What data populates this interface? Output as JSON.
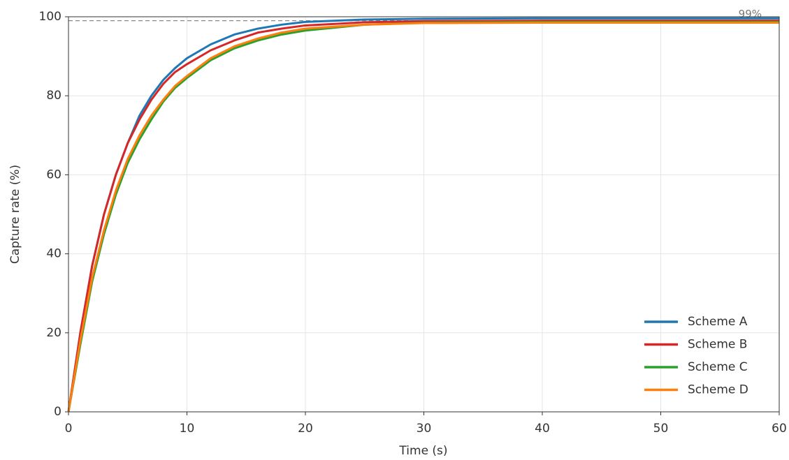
{
  "chart_data": {
    "type": "line",
    "x_label": "Time (s)",
    "y_label": "Capture rate (%)",
    "x": [
      0,
      1,
      2,
      3,
      4,
      5,
      6,
      7,
      8,
      9,
      10,
      12,
      14,
      16,
      18,
      20,
      25,
      30,
      40,
      50,
      60
    ],
    "series": [
      {
        "name": "Scheme A",
        "color": "#1f77b4",
        "values": [
          0,
          20,
          37,
          50,
          60,
          68,
          75,
          80,
          84,
          87,
          89.5,
          93,
          95.5,
          97,
          98,
          98.7,
          99.3,
          99.5,
          99.6,
          99.6,
          99.6
        ]
      },
      {
        "name": "Scheme B",
        "color": "#d62728",
        "values": [
          0,
          20,
          37,
          50,
          60,
          68,
          74,
          79,
          83,
          86,
          88,
          91.5,
          94,
          96,
          97,
          97.8,
          98.6,
          98.9,
          99,
          99,
          99
        ]
      },
      {
        "name": "Scheme C",
        "color": "#2ca02c",
        "values": [
          0,
          17,
          33,
          45,
          55,
          63,
          69,
          74,
          78.5,
          82,
          84.5,
          89,
          92,
          94,
          95.5,
          96.5,
          98,
          98.5,
          98.7,
          98.7,
          98.7
        ]
      },
      {
        "name": "Scheme D",
        "color": "#ff7f0e",
        "values": [
          0,
          18,
          34,
          46,
          56,
          64,
          70,
          75,
          79,
          82.5,
          85,
          89.5,
          92.5,
          94.5,
          96,
          97,
          98,
          98.4,
          98.5,
          98.5,
          98.5
        ]
      }
    ],
    "hline": {
      "value": 99,
      "label": "99%",
      "color": "#888888"
    },
    "xlim": [
      0,
      60
    ],
    "ylim": [
      0,
      100
    ],
    "xticks": [
      0,
      10,
      20,
      30,
      40,
      50,
      60
    ],
    "yticks": [
      0,
      20,
      40,
      60,
      80,
      100
    ],
    "grid": true,
    "legend": "lower right"
  }
}
